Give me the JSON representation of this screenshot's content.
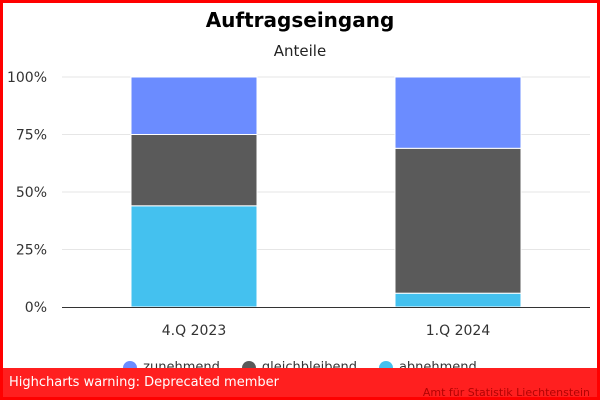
{
  "chart_data": {
    "type": "bar",
    "stacked": true,
    "title": "Auftragseingang",
    "subtitle": "Anteile",
    "categories": [
      "4.Q 2023",
      "1.Q 2024"
    ],
    "series": [
      {
        "name": "zunehmend",
        "color": "#6b8cff",
        "values": [
          25,
          31
        ]
      },
      {
        "name": "gleichbleibend",
        "color": "#5a5a5a",
        "values": [
          31,
          63
        ]
      },
      {
        "name": "abnehmend",
        "color": "#44c1ef",
        "values": [
          44,
          6
        ]
      }
    ],
    "yticks": [
      "0%",
      "25%",
      "50%",
      "75%",
      "100%"
    ],
    "ylim": [
      0,
      100
    ],
    "grid": true,
    "legend": "bottom"
  },
  "warning": "Highcharts warning: Deprecated member",
  "credit": "Amt für Statistik Liechtenstein"
}
